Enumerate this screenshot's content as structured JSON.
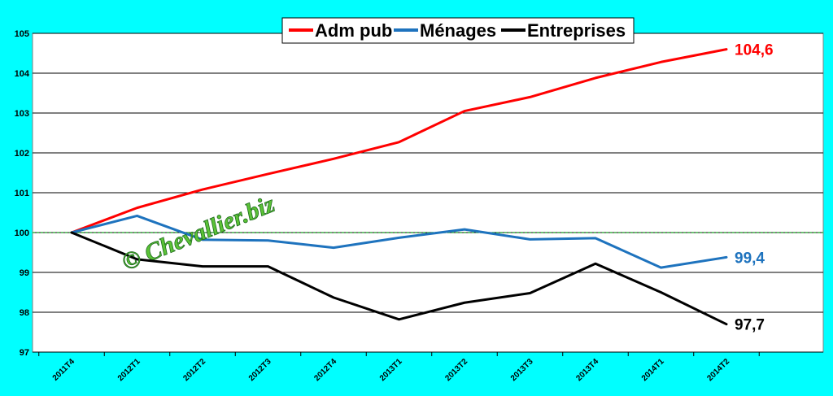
{
  "watermark": "© Chevallier.biz",
  "chart_data": {
    "type": "line",
    "categories": [
      "2011T4",
      "2012T1",
      "2012T2",
      "2012T3",
      "2012T4",
      "2013T1",
      "2013T2",
      "2013T3",
      "2013T4",
      "2014T1",
      "2014T2"
    ],
    "ylim": [
      97,
      105
    ],
    "yticks": [
      97,
      98,
      99,
      100,
      101,
      102,
      103,
      104,
      105
    ],
    "reference_line": {
      "value": 100,
      "color": "#3CB043",
      "style": "dashed"
    },
    "grid": true,
    "legend_position": "top",
    "series": [
      {
        "name": "Adm pub",
        "color": "#FF0000",
        "end_label": "104,6",
        "values": [
          100,
          100.62,
          101.08,
          101.47,
          101.85,
          102.27,
          103.05,
          103.4,
          103.88,
          104.28,
          104.6
        ]
      },
      {
        "name": "Ménages",
        "color": "#1E73BE",
        "end_label": "99,4",
        "values": [
          100,
          100.42,
          99.82,
          99.8,
          99.62,
          99.87,
          100.08,
          99.83,
          99.86,
          99.12,
          99.38
        ]
      },
      {
        "name": "Entreprises",
        "color": "#000000",
        "end_label": "97,7",
        "values": [
          100,
          99.33,
          99.15,
          99.15,
          98.37,
          97.82,
          98.24,
          98.48,
          99.22,
          98.5,
          97.7
        ]
      }
    ]
  }
}
